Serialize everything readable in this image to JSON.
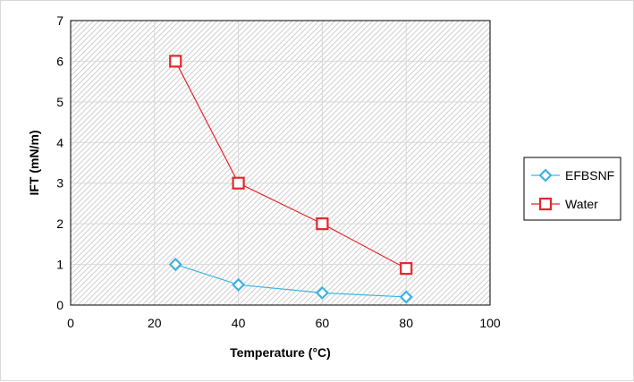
{
  "chart_data": {
    "type": "line",
    "title": "",
    "xlabel": "Temperature (°C)",
    "ylabel": "IFT (mN/m)",
    "xlim": [
      0,
      100
    ],
    "ylim": [
      0,
      7
    ],
    "xticks": [
      0,
      20,
      40,
      60,
      80,
      100
    ],
    "yticks": [
      0,
      1,
      2,
      3,
      4,
      5,
      6,
      7
    ],
    "grid": true,
    "legend_position": "right",
    "series": [
      {
        "name": "EFBSNF",
        "color": "#3fb3e0",
        "marker": "diamond",
        "x": [
          25,
          40,
          60,
          80
        ],
        "y": [
          1.0,
          0.5,
          0.3,
          0.2
        ]
      },
      {
        "name": "Water",
        "color": "#e6262b",
        "marker": "square",
        "x": [
          25,
          40,
          60,
          80
        ],
        "y": [
          6.0,
          3.0,
          2.0,
          0.9
        ]
      }
    ]
  }
}
